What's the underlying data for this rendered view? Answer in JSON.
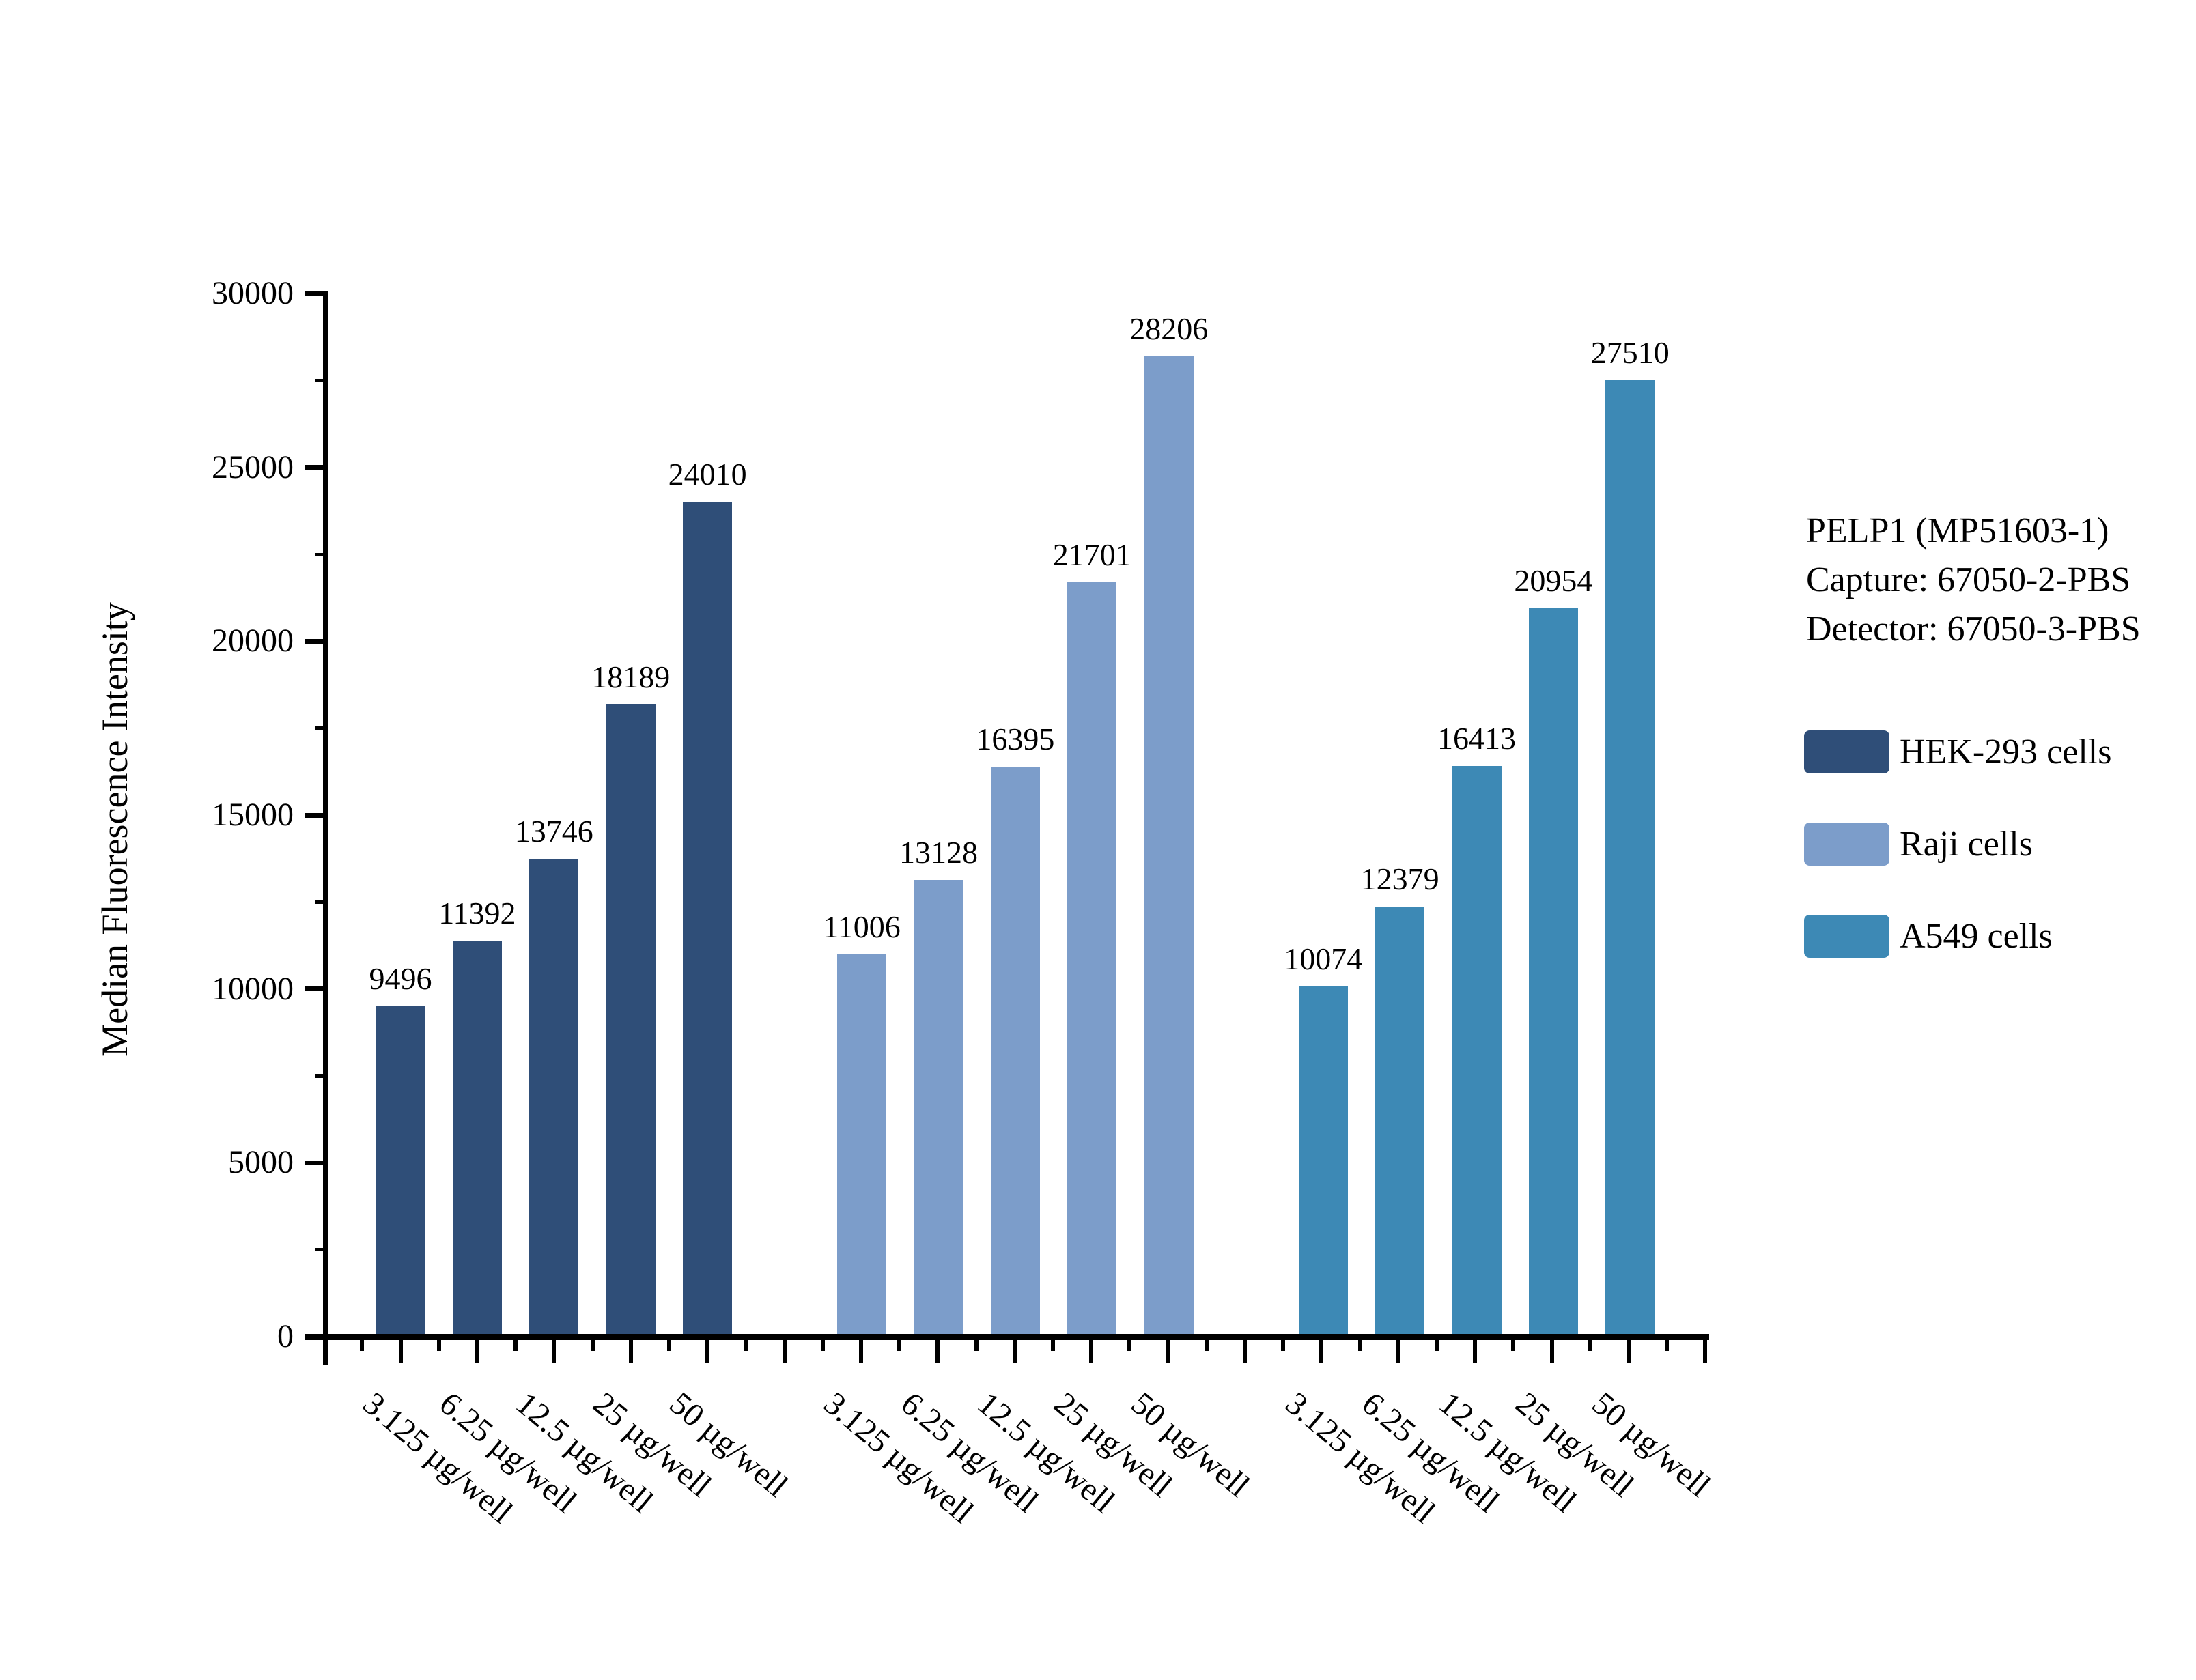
{
  "chart_data": {
    "type": "bar",
    "title_block": [
      "PELP1 (MP51603-1)",
      "Capture: 67050-2-PBS",
      "Detector: 67050-3-PBS"
    ],
    "ylabel": "Median Fluorescence Intensity",
    "ylim": [
      0,
      30000
    ],
    "y_major_step": 5000,
    "y_minor_step": 2500,
    "y_tick_labels": [
      "0",
      "5000",
      "10000",
      "15000",
      "20000",
      "25000",
      "30000"
    ],
    "categories": [
      "3.125 µg/well",
      "6.25 µg/well",
      "12.5 µg/well",
      "25 µg/well",
      "50 µg/well"
    ],
    "series": [
      {
        "name": "HEK-293 cells",
        "color": "#2F4E78",
        "values": [
          9496,
          11392,
          13746,
          18189,
          24010
        ]
      },
      {
        "name": "Raji cells",
        "color": "#7C9DCA",
        "values": [
          11006,
          13128,
          16395,
          21701,
          28206
        ]
      },
      {
        "name": "A549 cells",
        "color": "#3D89B5",
        "values": [
          10074,
          12379,
          16413,
          20954,
          27510
        ]
      }
    ],
    "legend_position": "right",
    "grid": false,
    "axis_color": "#000000",
    "background_color": "#ffffff"
  }
}
